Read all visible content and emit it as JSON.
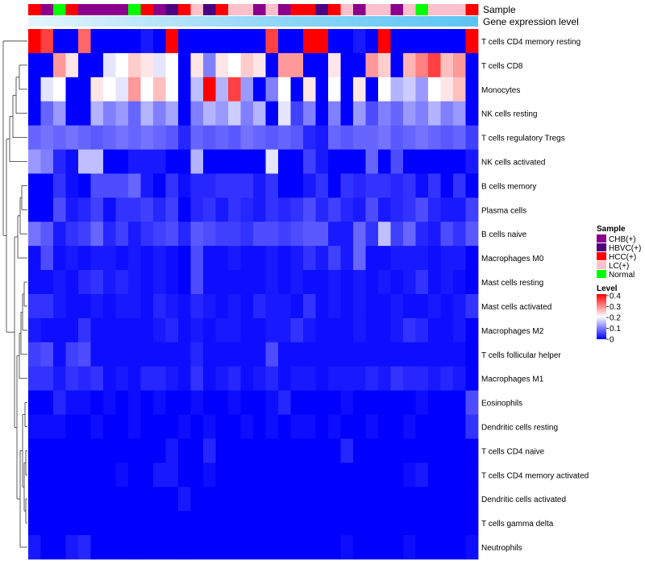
{
  "chart_data": {
    "type": "heatmap",
    "annotation_tracks": [
      "Sample",
      "Gene expression level"
    ],
    "sample_groups": [
      "HCC(+)",
      "CHB(+)",
      "Normal",
      "HCC(+)",
      "CHB(+)",
      "CHB(+)",
      "CHB(+)",
      "CHB(+)",
      "Normal",
      "HCC(+)",
      "CHB(+)",
      "HBVC(+)",
      "HCC(+)",
      "LC(+)",
      "HBVC(+)",
      "HCC(+)",
      "LC(+)",
      "LC(+)",
      "CHB(+)",
      "LC(+)",
      "CHB(+)",
      "HCC(+)",
      "HCC(+)",
      "HBVC(+)",
      "HCC(+)",
      "LC(+)",
      "CHB(+)",
      "LC(+)",
      "LC(+)",
      "CHB(+)",
      "LC(+)",
      "Normal",
      "LC(+)",
      "LC(+)",
      "LC(+)",
      "HCC(+)"
    ],
    "rows": [
      {
        "name": "T cells CD4 memory resting",
        "values": [
          0.4,
          0.35,
          0,
          0,
          0.32,
          0,
          0,
          0,
          0,
          0.02,
          0,
          0.4,
          0,
          0,
          0,
          0,
          0,
          0,
          0,
          0.35,
          0,
          0,
          0.4,
          0.4,
          0,
          0,
          0.02,
          0,
          0.4,
          0,
          0,
          0,
          0,
          0,
          0,
          0.4
        ]
      },
      {
        "name": "T cells CD8",
        "values": [
          0,
          0,
          0.28,
          0.22,
          0,
          0,
          0.18,
          0.2,
          0.24,
          0.22,
          0.18,
          0.2,
          0,
          0.22,
          0.1,
          0.22,
          0.2,
          0.24,
          0.22,
          0,
          0.28,
          0.28,
          0,
          0,
          0.22,
          0,
          0,
          0.28,
          0.24,
          0,
          0.26,
          0.3,
          0.35,
          0.25,
          0.28,
          0
        ]
      },
      {
        "name": "Monocytes",
        "values": [
          0,
          0.18,
          0.2,
          0,
          0,
          0.22,
          0.2,
          0.18,
          0.28,
          0.2,
          0.25,
          0.2,
          0,
          0.15,
          0.4,
          0.14,
          0.35,
          0.12,
          0,
          0.1,
          0.2,
          0,
          0.22,
          0,
          0.2,
          0,
          0.22,
          0,
          0.2,
          0.14,
          0.16,
          0.12,
          0.2,
          0.22,
          0.25,
          0
        ]
      },
      {
        "name": "NK cells resting",
        "values": [
          0,
          0.08,
          0.12,
          0,
          0,
          0.14,
          0.1,
          0.12,
          0.08,
          0.14,
          0.1,
          0.13,
          0,
          0.1,
          0.14,
          0.12,
          0.16,
          0.1,
          0.14,
          0,
          0.18,
          0.05,
          0.1,
          0,
          0.1,
          0,
          0.12,
          0.06,
          0.1,
          0.08,
          0.12,
          0.1,
          0.14,
          0.1,
          0.12,
          0
        ]
      },
      {
        "name": "T cells regulatory  Tregs",
        "values": [
          0.08,
          0.09,
          0.08,
          0.09,
          0.08,
          0.07,
          0.08,
          0.09,
          0.08,
          0.09,
          0.08,
          0.07,
          0.03,
          0.08,
          0.07,
          0.08,
          0.07,
          0.09,
          0.08,
          0.07,
          0.08,
          0.07,
          0.03,
          0.02,
          0.08,
          0.07,
          0.08,
          0.08,
          0.09,
          0.07,
          0.08,
          0.09,
          0.08,
          0.07,
          0.08,
          0.05
        ]
      },
      {
        "name": "NK cells activated",
        "values": [
          0.12,
          0.1,
          0.03,
          0.01,
          0.15,
          0.15,
          0,
          0,
          0.02,
          0.02,
          0.02,
          0,
          0,
          0.14,
          0,
          0,
          0,
          0,
          0,
          0.18,
          0,
          0,
          0.05,
          0.02,
          0,
          0,
          0,
          0.08,
          0,
          0.06,
          0,
          0,
          0,
          0,
          0,
          0.02
        ]
      },
      {
        "name": "B cells memory",
        "values": [
          0,
          0,
          0.04,
          0.01,
          0,
          0.06,
          0.06,
          0.06,
          0.08,
          0.02,
          0,
          0.04,
          0.01,
          0.03,
          0.03,
          0.04,
          0.04,
          0.04,
          0.02,
          0.04,
          0,
          0,
          0.02,
          0.04,
          0,
          0.04,
          0.03,
          0.04,
          0.04,
          0.03,
          0.04,
          0.01,
          0.04,
          0,
          0.04,
          0
        ]
      },
      {
        "name": "Plasma cells",
        "values": [
          0,
          0,
          0.06,
          0.02,
          0.03,
          0.05,
          0.01,
          0.04,
          0.04,
          0.05,
          0.03,
          0.05,
          0,
          0.03,
          0.04,
          0.02,
          0.04,
          0.03,
          0.02,
          0.04,
          0.03,
          0.04,
          0.06,
          0.03,
          0.05,
          0.03,
          0.02,
          0.06,
          0.02,
          0.03,
          0.04,
          0.06,
          0.03,
          0.02,
          0.02,
          0.05
        ]
      },
      {
        "name": "B cells naive",
        "values": [
          0.09,
          0.07,
          0.02,
          0.04,
          0.05,
          0.08,
          0.03,
          0.05,
          0.02,
          0.04,
          0.05,
          0.06,
          0.03,
          0.07,
          0.06,
          0.05,
          0.05,
          0.04,
          0.06,
          0.06,
          0.05,
          0.06,
          0.07,
          0.07,
          0.02,
          0.02,
          0.08,
          0.04,
          0.15,
          0.05,
          0.08,
          0.03,
          0.02,
          0.06,
          0.04,
          0.07
        ]
      },
      {
        "name": "Macrophages M0",
        "values": [
          0.01,
          0.06,
          0.01,
          0.02,
          0.01,
          0.02,
          0.02,
          0.01,
          0.02,
          0.01,
          0.02,
          0.01,
          0,
          0.06,
          0.01,
          0.01,
          0.02,
          0.01,
          0.01,
          0.02,
          0.01,
          0.02,
          0.04,
          0.02,
          0.05,
          0.02,
          0.08,
          0.01,
          0.01,
          0.02,
          0.02,
          0.02,
          0.01,
          0.02,
          0.02,
          0
        ]
      },
      {
        "name": "Mast cells resting",
        "values": [
          0.01,
          0.01,
          0.02,
          0.01,
          0.03,
          0.04,
          0.02,
          0.03,
          0.02,
          0.01,
          0.02,
          0.01,
          0,
          0.06,
          0.01,
          0.01,
          0.01,
          0.01,
          0.01,
          0.02,
          0.01,
          0.02,
          0.01,
          0.01,
          0.02,
          0.01,
          0.02,
          0.01,
          0.02,
          0.01,
          0.02,
          0.04,
          0.01,
          0.02,
          0.01,
          0
        ]
      },
      {
        "name": "Mast cells activated",
        "values": [
          0.04,
          0.04,
          0.02,
          0.01,
          0.01,
          0.02,
          0.01,
          0.02,
          0.02,
          0.01,
          0.03,
          0.02,
          0.01,
          0.03,
          0.02,
          0.01,
          0.02,
          0.01,
          0.03,
          0.02,
          0.02,
          0.01,
          0.04,
          0.01,
          0.02,
          0.01,
          0.02,
          0.01,
          0.01,
          0.02,
          0.01,
          0.01,
          0.02,
          0.01,
          0.02,
          0.04
        ]
      },
      {
        "name": "Macrophages M2",
        "values": [
          0.02,
          0.01,
          0.01,
          0.01,
          0.04,
          0.01,
          0.01,
          0.01,
          0.01,
          0.01,
          0.02,
          0.03,
          0.01,
          0.02,
          0.01,
          0.02,
          0.02,
          0.01,
          0.01,
          0.02,
          0.02,
          0.04,
          0.02,
          0.01,
          0.01,
          0.01,
          0.02,
          0.01,
          0.01,
          0.02,
          0.04,
          0.03,
          0.01,
          0.01,
          0.02,
          0
        ]
      },
      {
        "name": "T cells follicular helper",
        "values": [
          0.05,
          0.06,
          0.01,
          0.05,
          0.06,
          0.01,
          0.01,
          0.01,
          0.01,
          0.01,
          0.01,
          0.01,
          0.01,
          0.03,
          0.01,
          0.01,
          0.01,
          0.01,
          0.01,
          0.06,
          0.01,
          0.01,
          0.01,
          0.01,
          0.01,
          0.01,
          0.01,
          0.01,
          0.01,
          0.01,
          0.01,
          0.01,
          0.01,
          0.01,
          0.01,
          0
        ]
      },
      {
        "name": "Macrophages M1",
        "values": [
          0.04,
          0.04,
          0.02,
          0.04,
          0.03,
          0.04,
          0.01,
          0.02,
          0.01,
          0.03,
          0.03,
          0.02,
          0.01,
          0.04,
          0.01,
          0.02,
          0.03,
          0.01,
          0.02,
          0.03,
          0.01,
          0.02,
          0.02,
          0.01,
          0.02,
          0.02,
          0.02,
          0.03,
          0.02,
          0.04,
          0.03,
          0.03,
          0.02,
          0.03,
          0.02,
          0
        ]
      },
      {
        "name": "Eosinophils",
        "values": [
          0,
          0,
          0.03,
          0.01,
          0.01,
          0,
          0.01,
          0,
          0.01,
          0,
          0.01,
          0,
          0,
          0.01,
          0,
          0,
          0.01,
          0,
          0,
          0.01,
          0.03,
          0,
          0,
          0,
          0,
          0.01,
          0,
          0,
          0,
          0,
          0,
          0.01,
          0,
          0,
          0,
          0.06
        ]
      },
      {
        "name": "Dendritic cells resting",
        "values": [
          0.01,
          0.01,
          0.01,
          0,
          0,
          0.01,
          0,
          0,
          0.01,
          0,
          0,
          0,
          0.01,
          0,
          0.01,
          0,
          0,
          0.01,
          0,
          0.01,
          0,
          0.01,
          0.01,
          0,
          0.01,
          0,
          0,
          0.01,
          0,
          0,
          0.01,
          0,
          0,
          0,
          0,
          0.04
        ]
      },
      {
        "name": "T cells CD4 naive",
        "values": [
          0,
          0,
          0,
          0,
          0,
          0,
          0,
          0,
          0,
          0,
          0,
          0.02,
          0,
          0,
          0.03,
          0,
          0,
          0,
          0,
          0,
          0,
          0,
          0,
          0,
          0,
          0.03,
          0,
          0,
          0,
          0,
          0,
          0,
          0,
          0,
          0,
          0
        ]
      },
      {
        "name": "T cells CD4 memory activated",
        "values": [
          0,
          0,
          0,
          0,
          0,
          0,
          0,
          0.01,
          0,
          0,
          0.02,
          0.02,
          0,
          0,
          0.01,
          0,
          0,
          0,
          0,
          0,
          0,
          0,
          0,
          0,
          0,
          0,
          0,
          0,
          0,
          0,
          0.01,
          0.02,
          0,
          0,
          0,
          0
        ]
      },
      {
        "name": "Dendritic cells activated",
        "values": [
          0,
          0,
          0,
          0,
          0,
          0,
          0,
          0,
          0,
          0,
          0,
          0,
          0.02,
          0,
          0,
          0,
          0,
          0,
          0,
          0,
          0,
          0,
          0,
          0,
          0,
          0,
          0,
          0,
          0,
          0,
          0,
          0,
          0,
          0,
          0,
          0
        ]
      },
      {
        "name": "T cells gamma delta",
        "values": [
          0,
          0,
          0,
          0,
          0,
          0,
          0,
          0,
          0,
          0,
          0,
          0,
          0,
          0,
          0,
          0,
          0,
          0,
          0,
          0,
          0,
          0,
          0,
          0,
          0,
          0,
          0,
          0,
          0,
          0,
          0,
          0,
          0,
          0,
          0,
          0
        ]
      },
      {
        "name": "Neutrophils",
        "values": [
          0.02,
          0,
          0,
          0.02,
          0.03,
          0,
          0,
          0,
          0,
          0,
          0,
          0,
          0,
          0,
          0,
          0,
          0,
          0,
          0,
          0,
          0,
          0,
          0,
          0,
          0,
          0.01,
          0,
          0,
          0,
          0,
          0.01,
          0,
          0,
          0,
          0,
          0.01
        ]
      }
    ],
    "color_scale": {
      "min": 0,
      "mid": 0.2,
      "max": 0.4,
      "low_color": "#0000FF",
      "mid_color": "#FFFFFF",
      "high_color": "#FF0000"
    },
    "legend": {
      "sample_title": "Sample",
      "sample_entries": [
        {
          "label": "CHB(+)",
          "color": "#8B008B"
        },
        {
          "label": "HBVC(+)",
          "color": "#4B0082"
        },
        {
          "label": "HCC(+)",
          "color": "#FF0000"
        },
        {
          "label": "LC(+)",
          "color": "#FFC0CB"
        },
        {
          "label": "Normal",
          "color": "#00FF00"
        }
      ],
      "level_title": "Level",
      "level_ticks": [
        "0.4",
        "0.3",
        "0.2",
        "0.1",
        "0"
      ],
      "placement": "right"
    },
    "gene_expression_bar_color": "#5BC4F3"
  }
}
